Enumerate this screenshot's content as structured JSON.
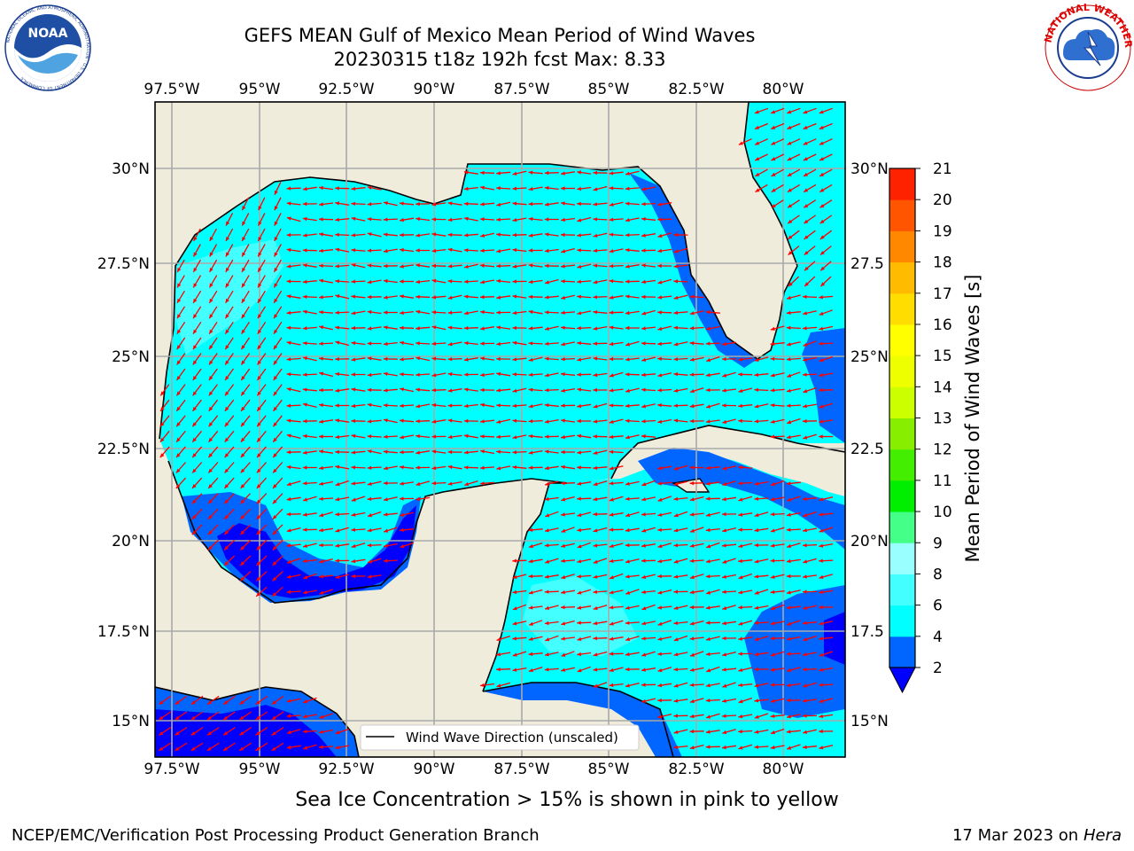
{
  "header": {
    "title_line1": "GEFS MEAN Gulf of Mexico Mean Period of Wind Waves",
    "title_line2": "20230315 t18z 192h fcst   Max: 8.33"
  },
  "logos": {
    "left": "NOAA",
    "left_ring_text": "NATIONAL OCEANIC AND ATMOSPHERIC ADMINISTRATION · U.S. DEPARTMENT OF COMMERCE",
    "right_ring_text": "NATIONAL WEATHER SERVICE"
  },
  "map": {
    "lon_labels": [
      "97.5°W",
      "95°W",
      "92.5°W",
      "90°W",
      "87.5°W",
      "85°W",
      "82.5°W",
      "80°W"
    ],
    "lat_labels_left": [
      "30°N",
      "27.5°N",
      "25°N",
      "22.5°N",
      "20°N",
      "17.5°N",
      "15°N"
    ],
    "lat_labels_right": [
      "30°N",
      "27.5",
      "25°N",
      "22.5",
      "20°N",
      "17.5",
      "15°N"
    ],
    "legend_label": "Wind Wave Direction (unscaled)",
    "arrow_color": "#ff0000",
    "land_color": "#efecdc",
    "ocean_color": "#00ffff"
  },
  "colorbar": {
    "label": "Mean Period of Wind Waves [s]",
    "ticks": [
      "2",
      "4",
      "6",
      "8",
      "9",
      "10",
      "11",
      "12",
      "13",
      "14",
      "15",
      "16",
      "17",
      "18",
      "19",
      "20",
      "21"
    ],
    "colors": [
      "#0066ff",
      "#00ffff",
      "#44ffff",
      "#99ffff",
      "#44ff88",
      "#00ee00",
      "#44ee00",
      "#88ee00",
      "#ccff00",
      "#eeff00",
      "#ffff00",
      "#ffdd00",
      "#ffbb00",
      "#ff8800",
      "#ff5500",
      "#ff2200"
    ],
    "under_color": "#0000ff"
  },
  "footer": {
    "subtitle": "Sea Ice Concentration > 15% is shown in pink to yellow",
    "left": "NCEP/EMC/Verification Post Processing Product Generation Branch",
    "right_date": "17 Mar 2023 on",
    "right_host": "Hera"
  }
}
